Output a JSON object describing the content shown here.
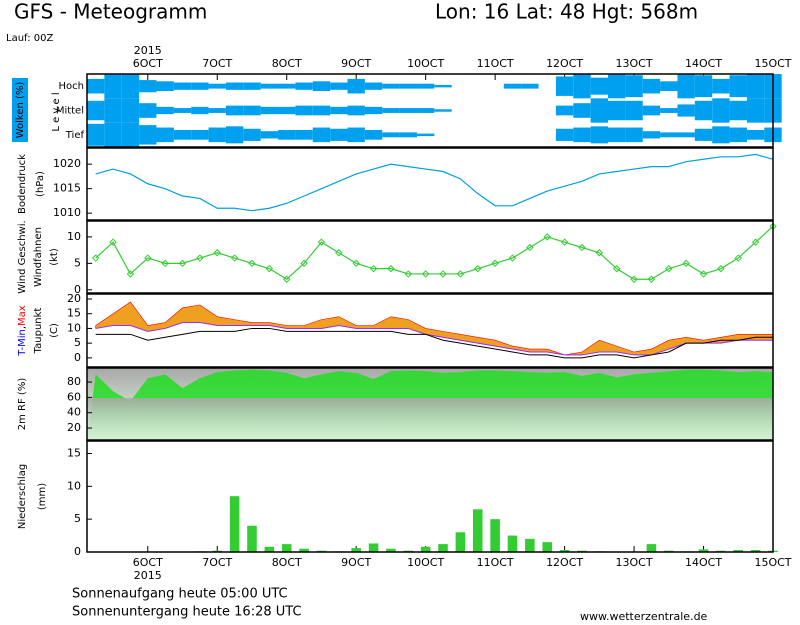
{
  "header": {
    "title": "GFS - Meteogramm",
    "location": "Lon: 16 Lat: 48 Hgt: 568m",
    "run": "Lauf: 00Z",
    "sunrise": "Sonnenaufgang heute 05:00 UTC",
    "sunset": "Sonnenuntergang heute 16:28 UTC",
    "source": "www.wetterzentrale.de"
  },
  "time_axis": {
    "year": "2015",
    "xlim": [
      5.125,
      15.0
    ],
    "xticks": [
      {
        "value": 6,
        "label": "6OCT"
      },
      {
        "value": 7,
        "label": "7OCT"
      },
      {
        "value": 8,
        "label": "8OCT"
      },
      {
        "value": 9,
        "label": "9OCT"
      },
      {
        "value": 10,
        "label": "10OCT"
      },
      {
        "value": 11,
        "label": "11OCT"
      },
      {
        "value": 12,
        "label": "12OCT"
      },
      {
        "value": 13,
        "label": "13OCT"
      },
      {
        "value": 14,
        "label": "14OCT"
      },
      {
        "value": 15,
        "label": "15OCT"
      }
    ],
    "x": [
      5.25,
      5.5,
      5.75,
      6.0,
      6.25,
      6.5,
      6.75,
      7.0,
      7.25,
      7.5,
      7.75,
      8.0,
      8.25,
      8.5,
      8.75,
      9.0,
      9.25,
      9.5,
      9.75,
      10.0,
      10.25,
      10.5,
      10.75,
      11.0,
      11.25,
      11.5,
      11.75,
      12.0,
      12.25,
      12.5,
      12.75,
      13.0,
      13.25,
      13.5,
      13.75,
      14.0,
      14.25,
      14.5,
      14.75,
      15.0
    ]
  },
  "chart_data": [
    {
      "type": "clouds",
      "label": "Wolken (%)",
      "level_label": "L e v e l",
      "series": [
        {
          "name": "Hoch",
          "color": "#00a0f0",
          "values": [
            60,
            100,
            100,
            50,
            40,
            30,
            30,
            20,
            30,
            30,
            20,
            20,
            30,
            40,
            30,
            60,
            30,
            20,
            20,
            20,
            10,
            0,
            0,
            0,
            20,
            20,
            0,
            80,
            100,
            70,
            100,
            90,
            60,
            40,
            100,
            90,
            60,
            90,
            100,
            100
          ]
        },
        {
          "name": "Mittel",
          "color": "#00a0f0",
          "values": [
            80,
            100,
            100,
            60,
            30,
            20,
            30,
            20,
            40,
            40,
            30,
            30,
            40,
            40,
            30,
            40,
            30,
            20,
            20,
            20,
            10,
            0,
            0,
            0,
            0,
            0,
            0,
            40,
            60,
            100,
            80,
            80,
            40,
            20,
            50,
            80,
            100,
            80,
            100,
            100
          ]
        },
        {
          "name": "Tief",
          "color": "#00a0f0",
          "values": [
            90,
            100,
            100,
            80,
            60,
            40,
            40,
            60,
            70,
            50,
            30,
            40,
            40,
            60,
            50,
            60,
            40,
            20,
            20,
            10,
            0,
            0,
            0,
            0,
            0,
            0,
            0,
            50,
            60,
            70,
            60,
            60,
            30,
            20,
            20,
            50,
            70,
            60,
            40,
            60
          ]
        }
      ]
    },
    {
      "type": "line",
      "label": "Bodendruck",
      "unit": "(hPa)",
      "color": "#00a0e0",
      "ylim": [
        1008.6,
        1023.3
      ],
      "yticks": [
        1010,
        1015,
        1020
      ],
      "values": [
        1018,
        1019,
        1018,
        1016,
        1015,
        1013.5,
        1013,
        1011,
        1011,
        1010.5,
        1011,
        1012,
        1013.5,
        1015,
        1016.5,
        1018,
        1019,
        1020,
        1019.5,
        1019,
        1018.5,
        1017,
        1014,
        1011.5,
        1011.5,
        1013,
        1014.5,
        1015.5,
        1016.5,
        1018,
        1018.5,
        1019,
        1019.5,
        1019.5,
        1020.5,
        1021,
        1021.5,
        1021.5,
        1022,
        1021
      ]
    },
    {
      "type": "line",
      "markers": true,
      "label": "Wind Geschwi.",
      "label2": "Windfahnen",
      "unit": "(kt)",
      "color": "#33cc33",
      "ylim": [
        -0.6,
        13
      ],
      "yticks": [
        0,
        5,
        10
      ],
      "values": [
        6,
        9,
        3,
        6,
        5,
        5,
        6,
        7,
        6,
        5,
        4,
        2,
        5,
        9,
        7,
        5,
        4,
        4,
        3,
        3,
        3,
        3,
        4,
        5,
        6,
        8,
        10,
        9,
        8,
        7,
        4,
        2,
        2,
        4,
        5,
        3,
        4,
        6,
        9,
        12
      ]
    },
    {
      "type": "band",
      "separator": ",",
      "unit": "(C)",
      "fill": "#f0a020",
      "ylim": [
        -3.1,
        21.7
      ],
      "yticks": [
        0,
        5,
        10,
        15,
        20
      ],
      "series": [
        {
          "name": "T-Min",
          "color": "#0000ff",
          "values": [
            10,
            11,
            11,
            9,
            10,
            12,
            12,
            11,
            11,
            11,
            11,
            10,
            10,
            10,
            11,
            10,
            10,
            10,
            10,
            8,
            7,
            6,
            5,
            4,
            3,
            2,
            2,
            1,
            1,
            2,
            2,
            1,
            1,
            3,
            5,
            5,
            5,
            6,
            6,
            6
          ]
        },
        {
          "name": "Max",
          "color": "#ff0000",
          "values": [
            11,
            15,
            19,
            11,
            12,
            17,
            18,
            14,
            13,
            12,
            12,
            11,
            11,
            13,
            14,
            11,
            11,
            14,
            13,
            10,
            9,
            8,
            7,
            6,
            4,
            3,
            3,
            1,
            2,
            6,
            4,
            2,
            3,
            6,
            7,
            6,
            7,
            8,
            8,
            8
          ]
        },
        {
          "name": "Taupunkt",
          "color": "#000000",
          "values": [
            8,
            8,
            8,
            6,
            7,
            8,
            9,
            9,
            9,
            10,
            10,
            9,
            9,
            9,
            9,
            9,
            9,
            9,
            8,
            8,
            6,
            5,
            4,
            3,
            2,
            1,
            1,
            0,
            0,
            1,
            1,
            0,
            1,
            2,
            5,
            5,
            6,
            6,
            7,
            7
          ]
        }
      ]
    },
    {
      "type": "area",
      "label": "2m RF (%)",
      "color": "#22dd22",
      "ylim": [
        4.4,
        98.3
      ],
      "yticks": [
        20,
        40,
        60,
        80
      ],
      "values": [
        90,
        68,
        55,
        85,
        90,
        72,
        85,
        93,
        95,
        96,
        95,
        92,
        85,
        90,
        94,
        92,
        84,
        94,
        95,
        94,
        92,
        93,
        95,
        95,
        94,
        93,
        92,
        93,
        88,
        92,
        86,
        90,
        92,
        94,
        96,
        96,
        95,
        93,
        94,
        93
      ]
    },
    {
      "type": "bar",
      "label": "Niederschlag",
      "unit": "(mm)",
      "color": "#33cc33",
      "ylim": [
        0,
        16.9
      ],
      "yticks": [
        0,
        5,
        10,
        15
      ],
      "values": [
        0,
        0,
        0,
        0,
        0,
        0,
        0.1,
        0.2,
        8.5,
        4,
        0.8,
        1.2,
        0.5,
        0.2,
        0.1,
        0.6,
        1.3,
        0.5,
        0.2,
        0.8,
        1.2,
        3,
        6.5,
        5,
        2.5,
        2,
        1.5,
        0.3,
        0.2,
        0.1,
        0,
        0,
        1.2,
        0.2,
        0.1,
        0.4,
        0.2,
        0.3,
        0.3,
        0.2
      ]
    }
  ]
}
